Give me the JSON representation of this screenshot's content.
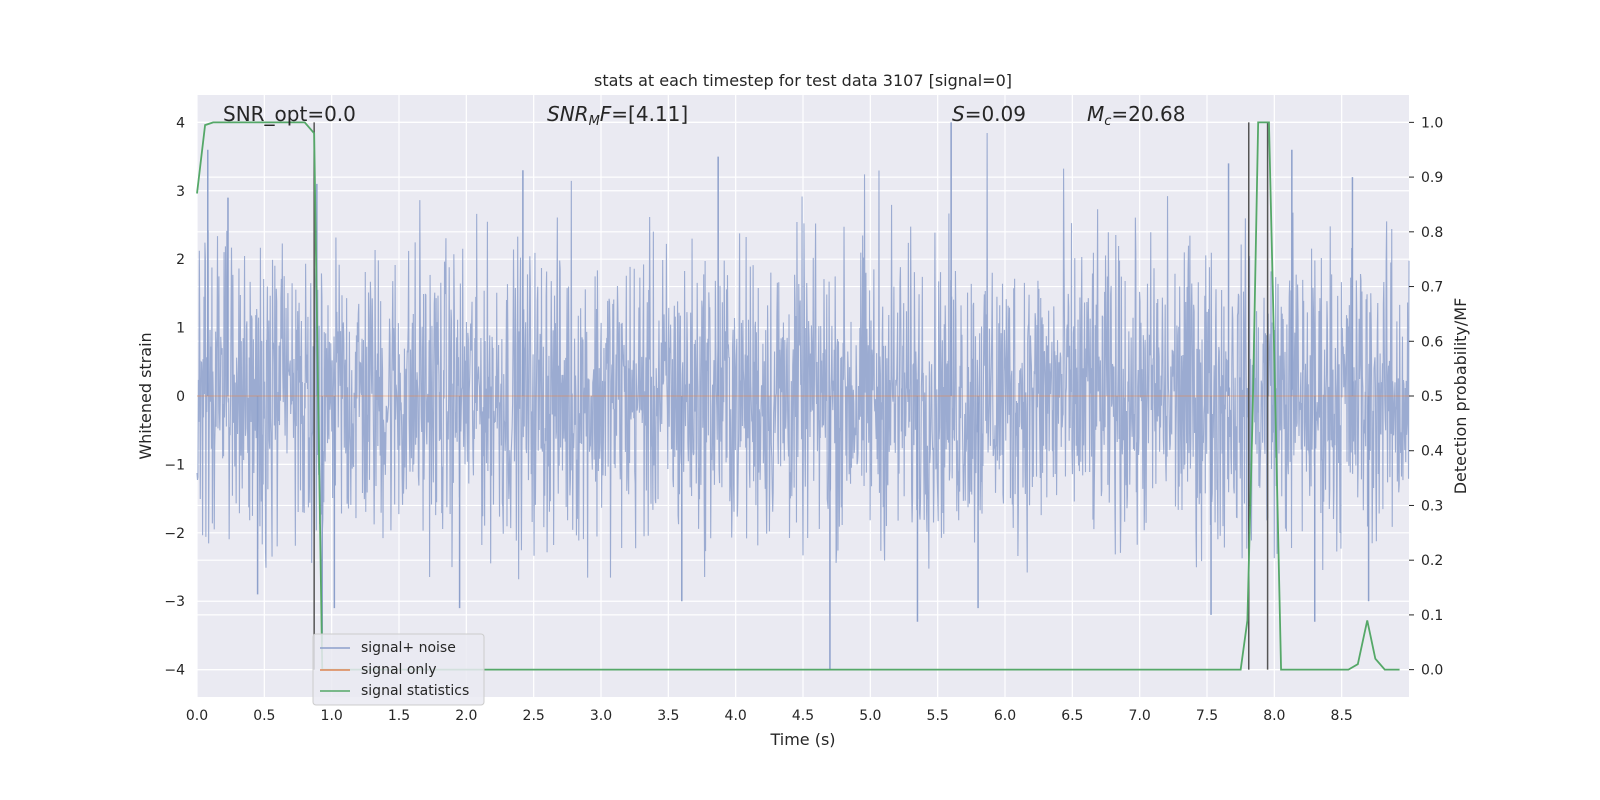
{
  "chart_data": {
    "type": "line",
    "title": "stats at each timestep for test data 3107 [signal=0]",
    "xlabel": "Time (s)",
    "ylabel": "Whitened strain",
    "y2label": "Detection probability/MF",
    "xlim": [
      0.0,
      9.0
    ],
    "ylim": [
      -4.4,
      4.4
    ],
    "y2lim": [
      -0.05,
      1.05
    ],
    "x_ticks": [
      "0.0",
      "0.5",
      "1.0",
      "1.5",
      "2.0",
      "2.5",
      "3.0",
      "3.5",
      "4.0",
      "4.5",
      "5.0",
      "5.5",
      "6.0",
      "6.5",
      "7.0",
      "7.5",
      "8.0",
      "8.5"
    ],
    "y_ticks": [
      "−4",
      "−3",
      "−2",
      "−1",
      "0",
      "1",
      "2",
      "3",
      "4"
    ],
    "y2_ticks": [
      "0.0",
      "0.1",
      "0.2",
      "0.3",
      "0.4",
      "0.5",
      "0.6",
      "0.7",
      "0.8",
      "0.9",
      "1.0"
    ],
    "grid": true,
    "legend_position": "lower-left",
    "annotations": {
      "snr_opt": "SNR_opt=0.0",
      "snr_mf_italic": "SNR",
      "snr_mf_sub": "M",
      "snr_mf_italic2": "F",
      "snr_mf_value": "=[4.11]",
      "s_italic": "S",
      "s_value": "=0.09",
      "mc_italic": "M",
      "mc_sub": "c",
      "mc_value": "=20.68"
    },
    "series": [
      {
        "name": "signal+ noise",
        "color": "#8da0cb",
        "axis": "left",
        "style": "dense noise trace, mostly between -2 and 2.5 with spikes to about ±4",
        "spikes": [
          {
            "x": 0.08,
            "y": 3.6
          },
          {
            "x": 0.23,
            "y": 2.9
          },
          {
            "x": 0.45,
            "y": -2.9
          },
          {
            "x": 0.89,
            "y": 3.1
          },
          {
            "x": 0.93,
            "y": -3.6
          },
          {
            "x": 1.02,
            "y": -3.1
          },
          {
            "x": 1.95,
            "y": -3.1
          },
          {
            "x": 2.42,
            "y": 3.3
          },
          {
            "x": 3.6,
            "y": -3.0
          },
          {
            "x": 3.87,
            "y": 3.5
          },
          {
            "x": 4.7,
            "y": -4.0
          },
          {
            "x": 5.35,
            "y": -3.3
          },
          {
            "x": 5.6,
            "y": 4.0
          },
          {
            "x": 5.8,
            "y": -3.1
          },
          {
            "x": 7.53,
            "y": -3.2
          },
          {
            "x": 7.66,
            "y": 3.4
          },
          {
            "x": 8.13,
            "y": 3.6
          },
          {
            "x": 8.3,
            "y": -3.3
          },
          {
            "x": 8.58,
            "y": 3.2
          },
          {
            "x": 8.7,
            "y": -3.0
          }
        ]
      },
      {
        "name": "signal only",
        "color": "#dd8452",
        "axis": "left",
        "x": [
          0.0,
          9.0
        ],
        "y": [
          0.0,
          0.0
        ]
      },
      {
        "name": "signal statistics",
        "color": "#55a868",
        "axis": "right",
        "x": [
          0.0,
          0.06,
          0.12,
          0.2,
          0.8,
          0.87,
          0.93,
          0.96,
          1.0,
          7.75,
          7.8,
          7.84,
          7.88,
          7.96,
          7.99,
          8.05,
          8.55,
          8.62,
          8.69,
          8.75,
          8.82,
          8.93
        ],
        "y": [
          0.87,
          0.995,
          1.0,
          1.0,
          1.0,
          0.98,
          0.0,
          0.0,
          0.0,
          0.0,
          0.09,
          0.48,
          1.0,
          1.0,
          0.68,
          0.0,
          0.0,
          0.01,
          0.09,
          0.02,
          0.0,
          0.0
        ]
      }
    ],
    "vertical_lines": [
      {
        "x": 0.87,
        "color": "#555555"
      },
      {
        "x": 7.81,
        "color": "#555555"
      },
      {
        "x": 7.95,
        "color": "#555555"
      }
    ]
  }
}
